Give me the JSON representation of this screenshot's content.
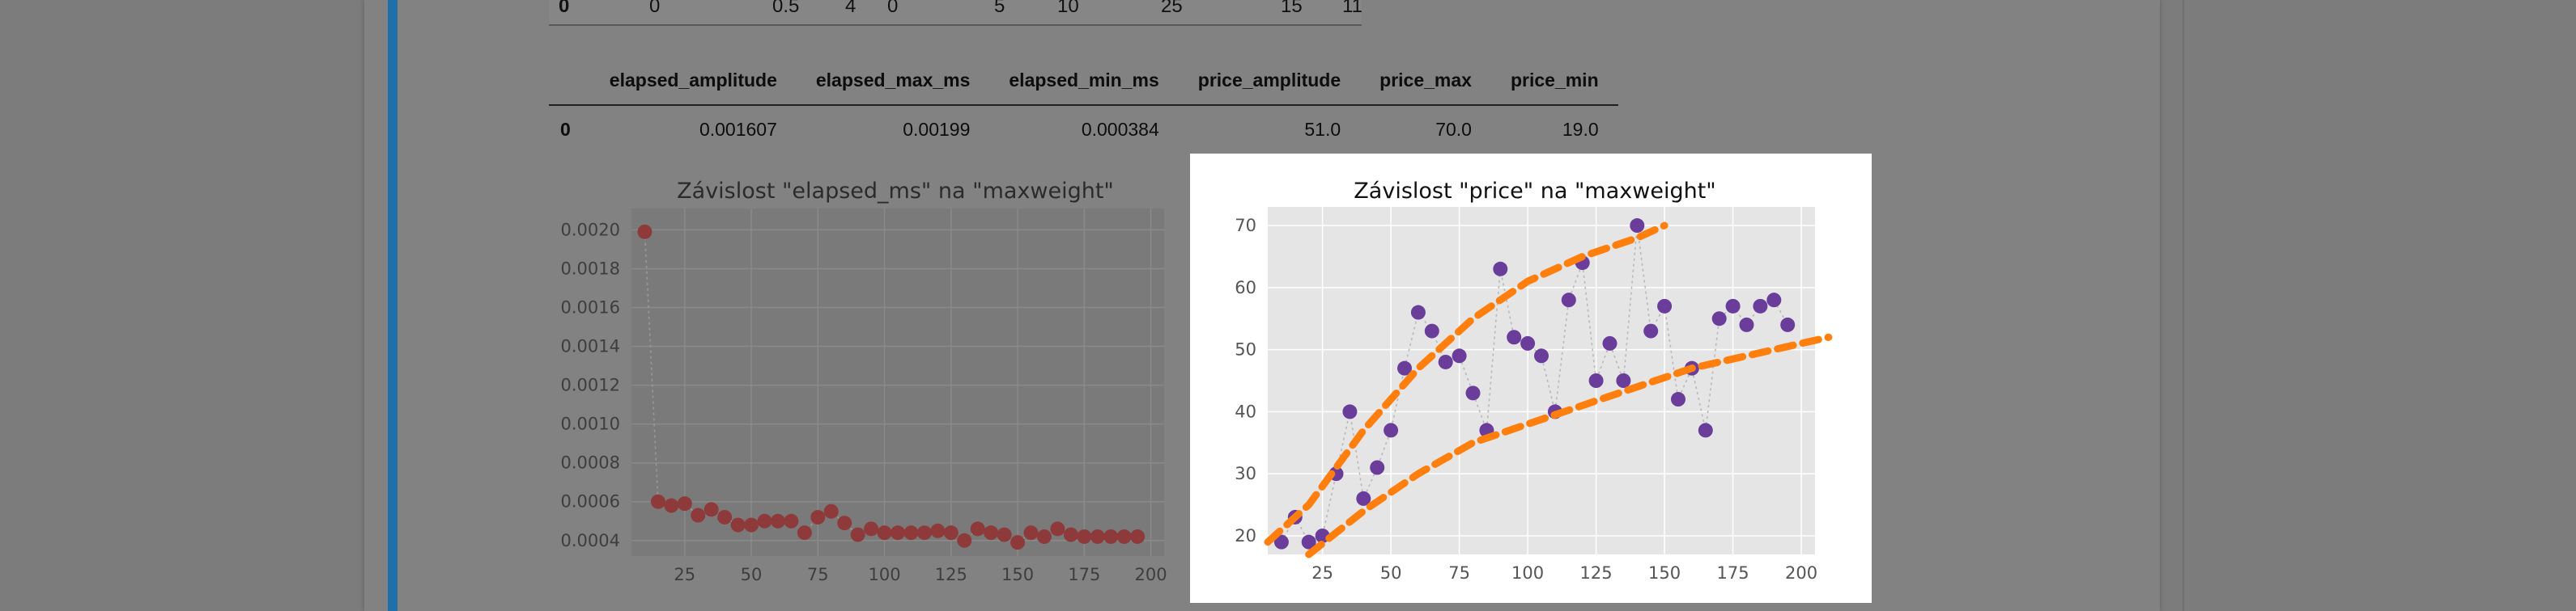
{
  "top_table": {
    "row": [
      "0",
      "0",
      "0.5",
      "4",
      "0",
      "5",
      "10",
      "25",
      "15",
      "11"
    ]
  },
  "stats_table": {
    "headers": [
      "",
      "elapsed_amplitude",
      "elapsed_max_ms",
      "elapsed_min_ms",
      "price_amplitude",
      "price_max",
      "price_min"
    ],
    "rows": [
      [
        "0",
        "0.001607",
        "0.00199",
        "0.000384",
        "51.0",
        "70.0",
        "19.0"
      ]
    ]
  },
  "colors": {
    "plot1_marker": "#8e3a3a",
    "plot2_marker": "#6a3d9a",
    "annotation": "#ff7f0e"
  },
  "chart_data": [
    {
      "type": "scatter",
      "title": "Závislost \"elapsed_ms\" na \"maxweight\"",
      "xlim": [
        5,
        205
      ],
      "ylim": [
        0.00032,
        0.00211
      ],
      "xticks": [
        25,
        50,
        75,
        100,
        125,
        150,
        175,
        200
      ],
      "yticks": [
        0.0004,
        0.0006,
        0.0008,
        0.001,
        0.0012,
        0.0014,
        0.0016,
        0.0018,
        0.002
      ],
      "ytick_labels": [
        "0.0004",
        "0.0006",
        "0.0008",
        "0.0010",
        "0.0012",
        "0.0014",
        "0.0016",
        "0.0018",
        "0.0020"
      ],
      "grid": true,
      "x": [
        10,
        15,
        20,
        25,
        30,
        35,
        40,
        45,
        50,
        55,
        60,
        65,
        70,
        75,
        80,
        85,
        90,
        95,
        100,
        105,
        110,
        115,
        120,
        125,
        130,
        135,
        140,
        145,
        150,
        155,
        160,
        165,
        170,
        175,
        180,
        185,
        190,
        195
      ],
      "y": [
        0.00199,
        0.0006,
        0.00058,
        0.00059,
        0.00053,
        0.00056,
        0.00052,
        0.00048,
        0.00048,
        0.0005,
        0.0005,
        0.0005,
        0.00044,
        0.00052,
        0.00055,
        0.00049,
        0.00043,
        0.00046,
        0.00044,
        0.00044,
        0.00044,
        0.00044,
        0.00045,
        0.00044,
        0.0004,
        0.00046,
        0.00044,
        0.00043,
        0.00039,
        0.00044,
        0.00042,
        0.00046,
        0.00043,
        0.00042,
        0.00042,
        0.00042,
        0.00042,
        0.00042
      ]
    },
    {
      "type": "scatter",
      "title": "Závislost \"price\" na \"maxweight\"",
      "xlim": [
        5,
        205
      ],
      "ylim": [
        17,
        73
      ],
      "xticks": [
        25,
        50,
        75,
        100,
        125,
        150,
        175,
        200
      ],
      "yticks": [
        20,
        30,
        40,
        50,
        60,
        70
      ],
      "grid": true,
      "x": [
        10,
        15,
        20,
        25,
        30,
        35,
        40,
        45,
        50,
        55,
        60,
        65,
        70,
        75,
        80,
        85,
        90,
        95,
        100,
        105,
        110,
        115,
        120,
        125,
        130,
        135,
        140,
        145,
        150,
        155,
        160,
        165,
        170,
        175,
        180,
        185,
        190,
        195
      ],
      "y": [
        19,
        23,
        19,
        20,
        30,
        40,
        26,
        31,
        37,
        47,
        56,
        53,
        48,
        49,
        43,
        37,
        63,
        52,
        51,
        49,
        40,
        58,
        64,
        45,
        51,
        45,
        70,
        53,
        57,
        42,
        47,
        37,
        55,
        57,
        54,
        57,
        58,
        54
      ],
      "annotations": [
        {
          "type": "dashed-curve",
          "x": [
            5,
            20,
            40,
            60,
            80,
            100,
            120,
            140,
            150
          ],
          "y": [
            19,
            25,
            37,
            47,
            55,
            61,
            65,
            68,
            70
          ]
        },
        {
          "type": "dashed-curve",
          "x": [
            20,
            40,
            60,
            80,
            100,
            120,
            140,
            160,
            180,
            200,
            210
          ],
          "y": [
            17,
            24,
            30,
            35,
            38,
            41,
            44,
            47,
            49,
            51,
            52
          ]
        }
      ]
    }
  ]
}
